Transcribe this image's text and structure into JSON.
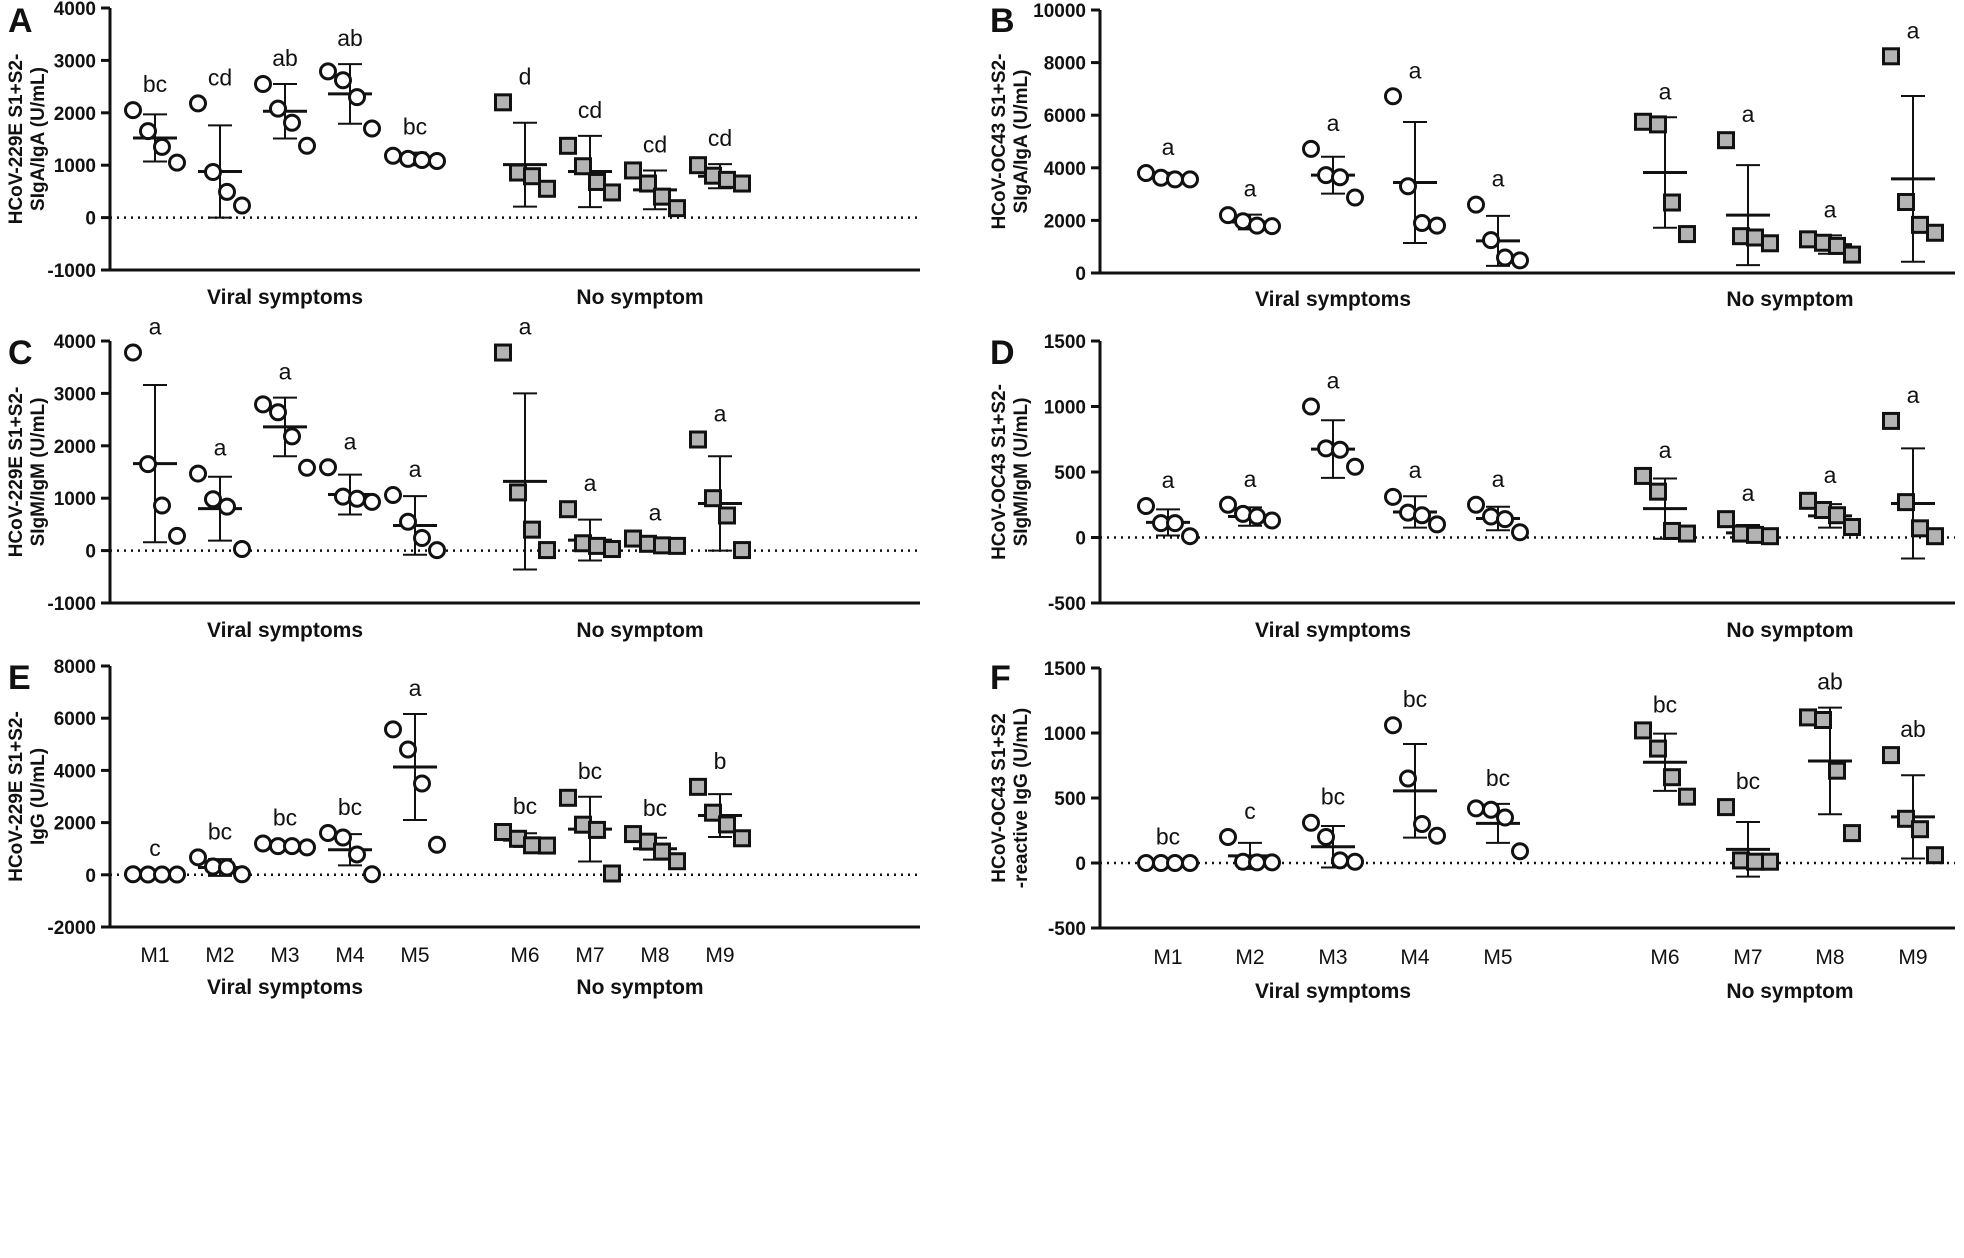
{
  "categories": [
    "M1",
    "M2",
    "M3",
    "M4",
    "M5",
    "M6",
    "M7",
    "M8",
    "M9"
  ],
  "groups": [
    "Viral symptoms",
    "No symptom"
  ],
  "colors": {
    "open_marker_fill": "#ffffff",
    "square_marker_fill": "#b3b3b3",
    "stroke": "#111111"
  },
  "chart_data": [
    {
      "panel": "A",
      "type": "scatter",
      "ylabel": [
        "HCoV-229E S1+S2-",
        "SIgA/IgA (U/mL)"
      ],
      "ylim": [
        -1000,
        4000
      ],
      "yticks": [
        -1000,
        0,
        1000,
        2000,
        3000,
        4000
      ],
      "yticklabels": [
        "-1000",
        "0",
        "1000",
        "2000",
        "3000",
        "4000"
      ],
      "mean": [
        1520,
        880,
        2030,
        2360,
        1120,
        1010,
        880,
        530,
        790
      ],
      "sd": [
        450,
        880,
        520,
        570,
        120,
        800,
        680,
        370,
        230
      ],
      "points": [
        [
          2050,
          1650,
          1350,
          1050
        ],
        [
          2180,
          870,
          490,
          230
        ],
        [
          2550,
          2080,
          1810,
          1370
        ],
        [
          2790,
          2620,
          2300,
          1700
        ],
        [
          1180,
          1120,
          1100,
          1080
        ],
        [
          2200,
          860,
          790,
          550
        ],
        [
          1370,
          980,
          680,
          480
        ],
        [
          900,
          650,
          400,
          180
        ],
        [
          1000,
          800,
          720,
          650
        ]
      ],
      "letters": [
        "bc",
        "cd",
        "ab",
        "ab",
        "bc",
        "d",
        "cd",
        "cd",
        "cd"
      ],
      "show_xcats": false
    },
    {
      "panel": "B",
      "type": "scatter",
      "ylabel": [
        "HCoV-OC43 S1+S2-",
        "SIgA/IgA (U/mL)"
      ],
      "ylim": [
        0,
        10000
      ],
      "yticks": [
        0,
        2000,
        4000,
        6000,
        8000,
        10000
      ],
      "yticklabels": [
        "0",
        "2000",
        "4000",
        "6000",
        "8000",
        "10000"
      ],
      "mean": [
        3640,
        1940,
        3720,
        3440,
        1220,
        3820,
        2200,
        1080,
        3580
      ],
      "sd": [
        170,
        280,
        700,
        2300,
        950,
        2100,
        1900,
        350,
        3150
      ],
      "points": [
        [
          3800,
          3620,
          3560,
          3560
        ],
        [
          2200,
          1970,
          1800,
          1780
        ],
        [
          4720,
          3720,
          3640,
          2870
        ],
        [
          6720,
          3300,
          1900,
          1800
        ],
        [
          2600,
          1250,
          590,
          480
        ],
        [
          5750,
          5650,
          2680,
          1480
        ],
        [
          5050,
          1400,
          1350,
          1130
        ],
        [
          1280,
          1150,
          1030,
          700
        ],
        [
          8240,
          2700,
          1830,
          1530
        ]
      ],
      "letters": [
        "a",
        "a",
        "a",
        "a",
        "a",
        "a",
        "a",
        "a",
        "a"
      ],
      "show_xcats": false
    },
    {
      "panel": "C",
      "type": "scatter",
      "ylabel": [
        "HCoV-229E S1+S2-",
        "SIgM/IgM (U/mL)"
      ],
      "ylim": [
        -1000,
        4000
      ],
      "yticks": [
        -1000,
        0,
        1000,
        2000,
        3000,
        4000
      ],
      "yticklabels": [
        "-1000",
        "0",
        "1000",
        "2000",
        "3000",
        "4000"
      ],
      "mean": [
        1660,
        800,
        2360,
        1070,
        480,
        1320,
        200,
        130,
        900
      ],
      "sd": [
        1500,
        610,
        560,
        380,
        560,
        1680,
        390,
        70,
        900
      ],
      "points": [
        [
          3780,
          1650,
          860,
          280
        ],
        [
          1470,
          980,
          840,
          30
        ],
        [
          2790,
          2640,
          2180,
          1580
        ],
        [
          1590,
          1030,
          990,
          930
        ],
        [
          1060,
          550,
          240,
          10
        ],
        [
          3780,
          1110,
          400,
          10
        ],
        [
          790,
          140,
          90,
          30
        ],
        [
          230,
          130,
          100,
          90
        ],
        [
          2120,
          1000,
          670,
          10
        ]
      ],
      "letters": [
        "a",
        "a",
        "a",
        "a",
        "a",
        "a",
        "a",
        "a",
        "a"
      ],
      "show_xcats": false
    },
    {
      "panel": "D",
      "type": "scatter",
      "ylabel": [
        "HCoV-OC43 S1+S2-",
        "SIgM/IgM (U/mL)"
      ],
      "ylim": [
        -500,
        1500
      ],
      "yticks": [
        -500,
        0,
        500,
        1000,
        1500
      ],
      "yticklabels": [
        "-500",
        "0",
        "500",
        "1000",
        "1500"
      ],
      "mean": [
        115,
        160,
        675,
        195,
        145,
        220,
        35,
        165,
        260
      ],
      "sd": [
        100,
        70,
        220,
        120,
        90,
        230,
        60,
        90,
        420
      ],
      "points": [
        [
          240,
          110,
          110,
          10
        ],
        [
          250,
          180,
          160,
          130
        ],
        [
          1000,
          680,
          670,
          540
        ],
        [
          310,
          190,
          170,
          100
        ],
        [
          250,
          160,
          140,
          40
        ],
        [
          470,
          350,
          50,
          30
        ],
        [
          140,
          30,
          20,
          10
        ],
        [
          280,
          210,
          170,
          80
        ],
        [
          890,
          270,
          70,
          10
        ]
      ],
      "letters": [
        "a",
        "a",
        "a",
        "a",
        "a",
        "a",
        "a",
        "a",
        "a"
      ],
      "show_xcats": false
    },
    {
      "panel": "E",
      "type": "scatter",
      "ylabel": [
        "HCoV-229E S1+S2-",
        "IgG (U/mL)"
      ],
      "ylim": [
        -2000,
        8000
      ],
      "yticks": [
        -2000,
        0,
        2000,
        4000,
        6000,
        8000
      ],
      "yticklabels": [
        "-2000",
        "0",
        "2000",
        "4000",
        "6000",
        "8000"
      ],
      "mean": [
        10,
        280,
        1110,
        960,
        4130,
        1330,
        1750,
        1000,
        2270
      ],
      "sd": [
        15,
        320,
        90,
        600,
        2030,
        260,
        1240,
        420,
        820
      ],
      "points": [
        [
          20,
          10,
          10,
          10
        ],
        [
          670,
          320,
          280,
          20
        ],
        [
          1200,
          1100,
          1100,
          1050
        ],
        [
          1600,
          1430,
          780,
          20
        ],
        [
          5570,
          4800,
          3500,
          1150
        ],
        [
          1640,
          1380,
          1130,
          1120
        ],
        [
          2950,
          1920,
          1720,
          50
        ],
        [
          1560,
          1270,
          890,
          520
        ],
        [
          3370,
          2380,
          1930,
          1400
        ]
      ],
      "letters": [
        "c",
        "bc",
        "bc",
        "bc",
        "a",
        "bc",
        "bc",
        "bc",
        "b"
      ],
      "show_xcats": true
    },
    {
      "panel": "F",
      "type": "scatter",
      "ylabel": [
        "HCoV-OC43 S1+S2",
        "-reactive IgG (U/mL)"
      ],
      "ylim": [
        -500,
        1500
      ],
      "yticks": [
        -500,
        0,
        500,
        1000,
        1500
      ],
      "yticklabels": [
        "-500",
        "0",
        "500",
        "1000",
        "1500"
      ],
      "mean": [
        0,
        55,
        125,
        555,
        305,
        775,
        105,
        785,
        355
      ],
      "sd": [
        5,
        100,
        160,
        360,
        150,
        220,
        210,
        410,
        320
      ],
      "points": [
        [
          0,
          0,
          0,
          0
        ],
        [
          200,
          10,
          5,
          5
        ],
        [
          310,
          200,
          20,
          10
        ],
        [
          1060,
          650,
          300,
          210
        ],
        [
          420,
          410,
          350,
          90
        ],
        [
          1020,
          880,
          660,
          510
        ],
        [
          430,
          20,
          10,
          10
        ],
        [
          1120,
          1100,
          710,
          230
        ],
        [
          830,
          340,
          260,
          60
        ]
      ],
      "letters": [
        "bc",
        "c",
        "bc",
        "bc",
        "bc",
        "bc",
        "bc",
        "ab",
        "ab"
      ],
      "show_xcats": true
    }
  ]
}
